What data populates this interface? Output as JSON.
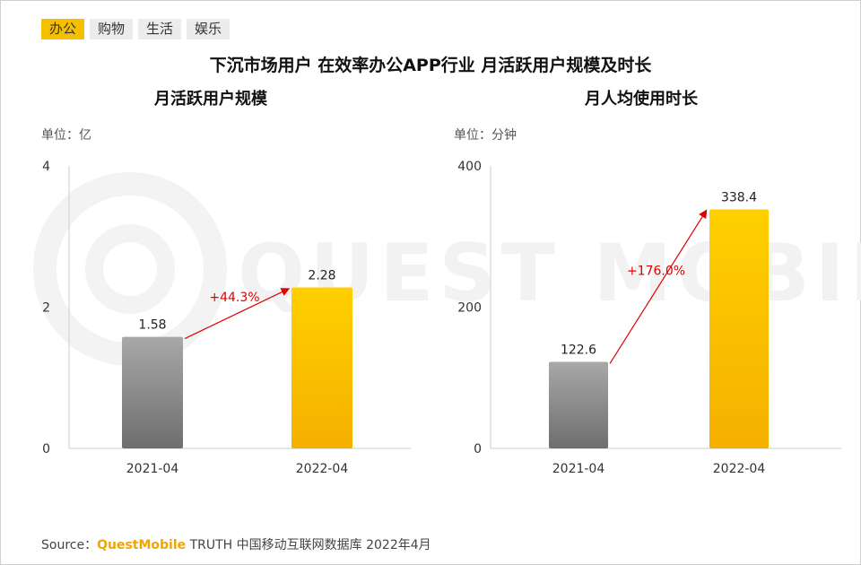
{
  "tabs": [
    {
      "label": "办公",
      "active": true
    },
    {
      "label": "购物",
      "active": false
    },
    {
      "label": "生活",
      "active": false
    },
    {
      "label": "娱乐",
      "active": false
    }
  ],
  "title": "下沉市场用户 在效率办公APP行业 月活跃用户规模及时长",
  "watermark": "QUEST MOBILE",
  "source": {
    "prefix": "Source：",
    "brand": "QuestMobile",
    "suffix": " TRUTH 中国移动互联网数据库 2022年4月"
  },
  "colors": {
    "gray_top": "#a8a8a8",
    "gray_bottom": "#6e6e6e",
    "gold_top": "#ffd000",
    "gold_bottom": "#f5b000",
    "arrow": "#e00000"
  },
  "chart_data": [
    {
      "type": "bar",
      "title": "月活跃用户规模",
      "unit": "单位：亿",
      "categories": [
        "2021-04",
        "2022-04"
      ],
      "values": [
        1.58,
        2.28
      ],
      "value_labels": [
        "1.58",
        "2.28"
      ],
      "yticks": [
        "0",
        "2",
        "4"
      ],
      "ylim": [
        0,
        4
      ],
      "growth": "+44.3%"
    },
    {
      "type": "bar",
      "title": "月人均使用时长",
      "unit": "单位：分钟",
      "categories": [
        "2021-04",
        "2022-04"
      ],
      "values": [
        122.6,
        338.4
      ],
      "value_labels": [
        "122.6",
        "338.4"
      ],
      "yticks": [
        "0",
        "200",
        "400"
      ],
      "ylim": [
        0,
        400
      ],
      "growth": "+176.0%"
    }
  ]
}
